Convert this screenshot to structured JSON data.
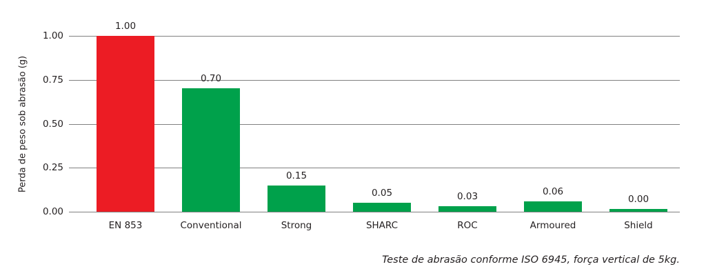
{
  "chart_data": {
    "type": "bar",
    "title": "",
    "xlabel": "",
    "ylabel": "Perda de peso sob abrasão (g)",
    "categories": [
      "EN 853",
      "Conventional",
      "Strong",
      "SHARC",
      "ROC",
      "Armoured",
      "Shield"
    ],
    "values": [
      1.0,
      0.7,
      0.15,
      0.05,
      0.03,
      0.06,
      0.0
    ],
    "value_labels": [
      "1.00",
      "0.70",
      "0.15",
      "0.05",
      "0.03",
      "0.06",
      "0.00"
    ],
    "bar_colors": [
      "#ec1c24",
      "#00a14b",
      "#00a14b",
      "#00a14b",
      "#00a14b",
      "#00a14b",
      "#00a14b"
    ],
    "ylim": [
      0,
      1.0
    ],
    "yticks": [
      "1.00",
      "0.75",
      "0.50",
      "0.25",
      "0.00"
    ],
    "grid": true,
    "legend": "none",
    "footnote": "Teste de abrasão conforme ISO 6945, força vertical de 5kg."
  },
  "colors": {
    "highlight_red": "#ec1c24",
    "series_green": "#00a14b",
    "text": "#231f20",
    "gridline": "#808080",
    "background": "#ffffff"
  }
}
